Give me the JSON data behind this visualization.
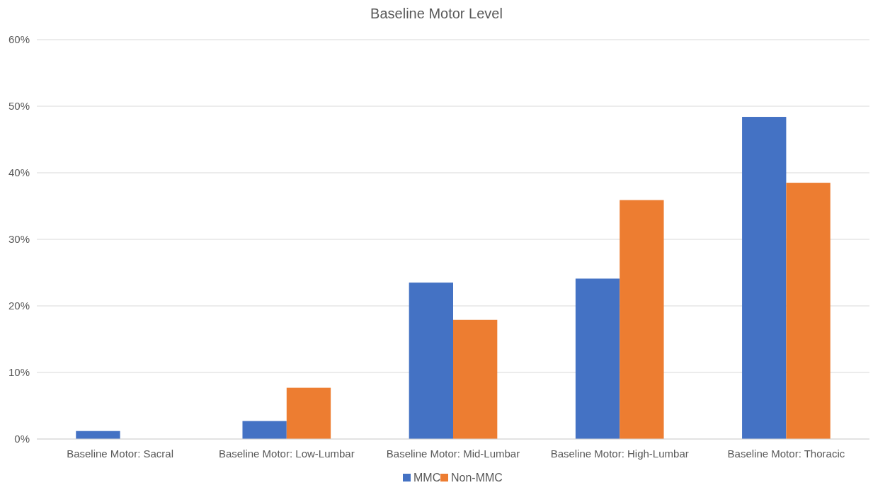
{
  "chart_data": {
    "type": "bar",
    "title": "Baseline Motor Level",
    "categories": [
      "Baseline Motor: Sacral",
      "Baseline Motor: Low-Lumbar",
      "Baseline Motor: Mid-Lumbar",
      "Baseline Motor: High-Lumbar",
      "Baseline Motor: Thoracic"
    ],
    "series": [
      {
        "name": "MMC",
        "color": "#4472c4",
        "values": [
          1.2,
          2.7,
          23.5,
          24.1,
          48.4
        ]
      },
      {
        "name": "Non-MMC",
        "color": "#ed7d31",
        "values": [
          0,
          7.7,
          17.9,
          35.9,
          38.5
        ]
      }
    ],
    "ylim": [
      0,
      60
    ],
    "yticks": [
      {
        "value": 0,
        "label": "0%"
      },
      {
        "value": 10,
        "label": "10%"
      },
      {
        "value": 20,
        "label": "20%"
      },
      {
        "value": 30,
        "label": "30%"
      },
      {
        "value": 40,
        "label": "40%"
      },
      {
        "value": 50,
        "label": "50%"
      },
      {
        "value": 60,
        "label": "60%"
      }
    ],
    "grid": "y",
    "legend": "bottom"
  }
}
